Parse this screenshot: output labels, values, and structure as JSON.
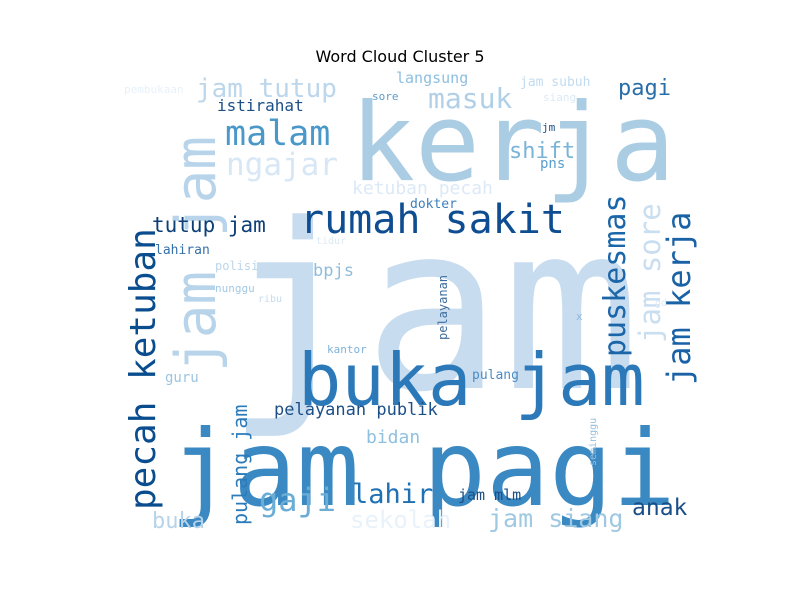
{
  "chart_data": {
    "type": "wordcloud",
    "title": "Word Cloud Cluster 5",
    "colormap": "Blues",
    "words": [
      {
        "text": "jam",
        "weight": 1.0,
        "color": "#c8dcef",
        "rotate": 0
      },
      {
        "text": "kerja",
        "weight": 0.62,
        "color": "#aacde4",
        "rotate": 0
      },
      {
        "text": "jam pagi",
        "weight": 0.58,
        "color": "#3a89c2",
        "rotate": 0
      },
      {
        "text": "buka jam",
        "weight": 0.42,
        "color": "#2b79b9",
        "rotate": 0
      },
      {
        "text": "jam jam",
        "weight": 0.4,
        "color": "#b8d4ea",
        "rotate": -90
      },
      {
        "text": "rumah sakit",
        "weight": 0.3,
        "color": "#0e4d91",
        "rotate": 0
      },
      {
        "text": "pecah ketuban",
        "weight": 0.28,
        "color": "#0a4d8f",
        "rotate": -90
      },
      {
        "text": "jam kerja",
        "weight": 0.24,
        "color": "#1a62a6",
        "rotate": -90
      },
      {
        "text": "puskesmas",
        "weight": 0.22,
        "color": "#1b65a9",
        "rotate": -90
      },
      {
        "text": "jam sore",
        "weight": 0.21,
        "color": "#c9def0",
        "rotate": -90
      },
      {
        "text": "malam",
        "weight": 0.23,
        "color": "#4a98c9",
        "rotate": 0
      },
      {
        "text": "ngajar",
        "weight": 0.21,
        "color": "#d8e7f5",
        "rotate": 0
      },
      {
        "text": "jam tutup",
        "weight": 0.19,
        "color": "#bcd6eb",
        "rotate": 0
      },
      {
        "text": "masuk",
        "weight": 0.19,
        "color": "#b1d0e8",
        "rotate": 0
      },
      {
        "text": "gaji",
        "weight": 0.2,
        "color": "#6aaed6",
        "rotate": 0
      },
      {
        "text": "lahir",
        "weight": 0.18,
        "color": "#2070b4",
        "rotate": 0
      },
      {
        "text": "jam siang",
        "weight": 0.17,
        "color": "#9fc8e2",
        "rotate": 0
      },
      {
        "text": "sekolah",
        "weight": 0.16,
        "color": "#e9f2fa",
        "rotate": 0
      },
      {
        "text": "buka",
        "weight": 0.15,
        "color": "#b6d3e9",
        "rotate": 0
      },
      {
        "text": "anak",
        "weight": 0.15,
        "color": "#1a4e86",
        "rotate": 0
      },
      {
        "text": "pagi",
        "weight": 0.15,
        "color": "#2a6ea9",
        "rotate": 0
      },
      {
        "text": "shift",
        "weight": 0.14,
        "color": "#78b3d8",
        "rotate": 0
      },
      {
        "text": "tutup jam",
        "weight": 0.14,
        "color": "#0c3f77",
        "rotate": 0
      },
      {
        "text": "pulang jam",
        "weight": 0.14,
        "color": "#2b7bba",
        "rotate": -90
      },
      {
        "text": "ketuban pecah",
        "weight": 0.13,
        "color": "#dce9f6",
        "rotate": 0
      },
      {
        "text": "pelayanan publik",
        "weight": 0.12,
        "color": "#1b4f86",
        "rotate": 0
      },
      {
        "text": "bidan",
        "weight": 0.12,
        "color": "#8fc0df",
        "rotate": 0
      },
      {
        "text": "bpjs",
        "weight": 0.12,
        "color": "#8fbcdc",
        "rotate": 0
      },
      {
        "text": "istirahat",
        "weight": 0.11,
        "color": "#1b4f86",
        "rotate": 0
      },
      {
        "text": "langsung",
        "weight": 0.1,
        "color": "#8cbfe0",
        "rotate": 0
      },
      {
        "text": "jam mlm",
        "weight": 0.1,
        "color": "#1a4e86",
        "rotate": 0
      },
      {
        "text": "dokter",
        "weight": 0.09,
        "color": "#3d7fbd",
        "rotate": 0
      },
      {
        "text": "pns",
        "weight": 0.09,
        "color": "#5a9fcf",
        "rotate": 0
      },
      {
        "text": "lahiran",
        "weight": 0.09,
        "color": "#3670a9",
        "rotate": 0
      },
      {
        "text": "pulang",
        "weight": 0.09,
        "color": "#4a8cc4",
        "rotate": 0
      },
      {
        "text": "guru",
        "weight": 0.09,
        "color": "#9cc5e1",
        "rotate": 0
      },
      {
        "text": "jam subuh",
        "weight": 0.08,
        "color": "#c2dbee",
        "rotate": 0
      },
      {
        "text": "pelayanan",
        "weight": 0.08,
        "color": "#3d6d9e",
        "rotate": -90
      },
      {
        "text": "sore",
        "weight": 0.07,
        "color": "#5e9cc9",
        "rotate": 0
      },
      {
        "text": "siang",
        "weight": 0.07,
        "color": "#dde9f4",
        "rotate": 0
      },
      {
        "text": "jm",
        "weight": 0.07,
        "color": "#1a4e86",
        "rotate": 0
      },
      {
        "text": "polisi",
        "weight": 0.07,
        "color": "#bcd6ea",
        "rotate": 0
      },
      {
        "text": "nunggu",
        "weight": 0.07,
        "color": "#a4c9e4",
        "rotate": 0
      },
      {
        "text": "ribu",
        "weight": 0.06,
        "color": "#c5dcef",
        "rotate": 0
      },
      {
        "text": "kantor",
        "weight": 0.07,
        "color": "#7fb2d8",
        "rotate": 0
      },
      {
        "text": "tidur",
        "weight": 0.06,
        "color": "#dce9f4",
        "rotate": 0
      },
      {
        "text": "pembukaan",
        "weight": 0.06,
        "color": "#e8f1f9",
        "rotate": 0
      },
      {
        "text": "seminggu",
        "weight": 0.06,
        "color": "#97bfdd",
        "rotate": -90
      },
      {
        "text": "x",
        "weight": 0.05,
        "color": "#8cb7da",
        "rotate": 0
      },
      {
        "text": "gd",
        "weight": 0.05,
        "color": "#dde9f4",
        "rotate": 0
      }
    ]
  }
}
